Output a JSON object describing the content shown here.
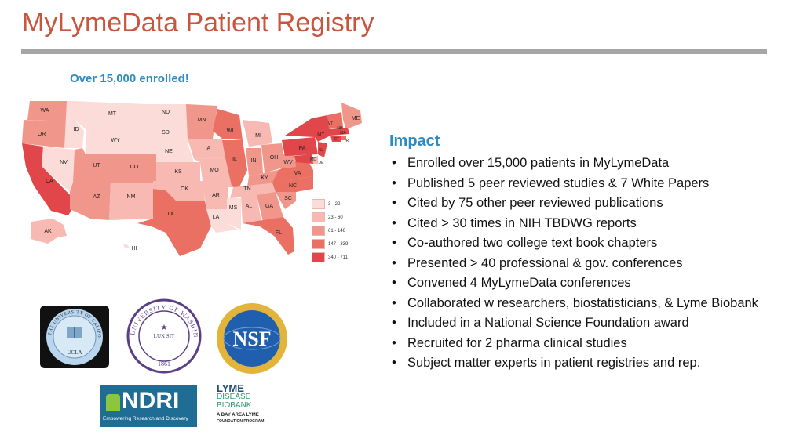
{
  "slide": {
    "title": "MyLymeData Patient Registry",
    "enrolled": "Over 15,000 enrolled!"
  },
  "map": {
    "states": [
      "WA",
      "OR",
      "CA",
      "NV",
      "ID",
      "MT",
      "WY",
      "UT",
      "AZ",
      "CO",
      "NM",
      "ND",
      "SD",
      "NE",
      "KS",
      "OK",
      "TX",
      "MN",
      "IA",
      "MO",
      "AR",
      "LA",
      "WI",
      "IL",
      "MI",
      "IN",
      "OH",
      "KY",
      "TN",
      "MS",
      "AL",
      "GA",
      "FL",
      "SC",
      "NC",
      "VA",
      "WV",
      "PA",
      "NY",
      "VT",
      "NH",
      "ME",
      "MA",
      "CT",
      "RI",
      "NJ",
      "DE",
      "MD",
      "AK",
      "HI"
    ],
    "legend": [
      "3 - 22",
      "23 - 60",
      "61 - 146",
      "147 - 339",
      "340 - 711"
    ],
    "legend_colors": [
      "#fbdcd8",
      "#f7b9b1",
      "#f1968a",
      "#e97062",
      "#e0464a"
    ]
  },
  "impact": {
    "title": "Impact",
    "items": [
      "Enrolled over 15,000 patients in MyLymeData",
      "Published 5 peer reviewed studies & 7 White Papers",
      "Cited by 75 other peer reviewed publications",
      "Cited > 30 times in NIH TBDWG reports",
      "Co-authored two college text book chapters",
      "Presented > 40 professional & gov. conferences",
      "Convened 4 MyLymeData conferences",
      "Collaborated w researchers, biostatisticians, & Lyme Biobank",
      "Included in a National Science Foundation award",
      "Recruited for 2 pharma clinical studies",
      "Subject matter experts in patient registries and rep."
    ]
  },
  "logos": {
    "uc_top": "THE UNIVERSITY OF CALIFORNIA",
    "uc_bottom": "UCLA",
    "uw_ring": "UNIVERSITY OF WASHINGTON",
    "uw_year": "1861",
    "uw_motto": "LUX SIT",
    "nsf": "NSF",
    "ndri_name": "NDRI",
    "ndri_tagline": "Empowering Research and Discovery",
    "lyme_line1": "LYME",
    "lyme_line2": "DISEASE",
    "lyme_line3": "BIOBANK",
    "lyme_line4": "A BAY AREA LYME",
    "lyme_line5": "FOUNDATION PROGRAM"
  }
}
